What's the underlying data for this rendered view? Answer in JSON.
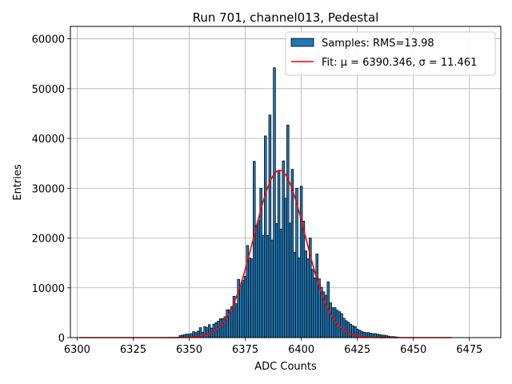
{
  "chart_data": {
    "type": "histogram",
    "title": "Run 701, channel013, Pedestal",
    "xlabel": "ADC Counts",
    "ylabel": "Entries",
    "xlim": [
      6297,
      6489
    ],
    "ylim": [
      0,
      62500
    ],
    "xticks": [
      6300,
      6325,
      6350,
      6375,
      6400,
      6425,
      6450,
      6475
    ],
    "yticks": [
      0,
      10000,
      20000,
      30000,
      40000,
      50000,
      60000
    ],
    "grid": true,
    "legend_position": "upper right",
    "colors": {
      "bar_fill": "#1f77b4",
      "bar_edge": "#000000",
      "fit_line": "#ff0000",
      "grid": "#b0b0b0"
    },
    "histogram": {
      "name": "Samples: RMS=13.98",
      "bin_centers": [
        6346,
        6347,
        6348,
        6349,
        6350,
        6351,
        6352,
        6353,
        6354,
        6355,
        6356,
        6357,
        6358,
        6359,
        6360,
        6361,
        6362,
        6363,
        6364,
        6365,
        6366,
        6367,
        6368,
        6369,
        6370,
        6371,
        6372,
        6373,
        6374,
        6375,
        6376,
        6377,
        6378,
        6379,
        6380,
        6381,
        6382,
        6383,
        6384,
        6385,
        6386,
        6387,
        6388,
        6389,
        6390,
        6391,
        6392,
        6393,
        6394,
        6395,
        6396,
        6397,
        6398,
        6399,
        6400,
        6401,
        6402,
        6403,
        6404,
        6405,
        6406,
        6407,
        6408,
        6409,
        6410,
        6411,
        6412,
        6413,
        6414,
        6415,
        6416,
        6417,
        6418,
        6419,
        6420,
        6421,
        6422,
        6423,
        6424,
        6425,
        6426,
        6427,
        6428,
        6429,
        6430,
        6431,
        6432,
        6433,
        6434,
        6435,
        6436,
        6437,
        6438,
        6439,
        6440,
        6441,
        6442,
        6443
      ],
      "counts": [
        400,
        500,
        600,
        700,
        700,
        800,
        1200,
        1000,
        1300,
        2000,
        1100,
        2200,
        2000,
        2600,
        1900,
        2700,
        3000,
        3300,
        3800,
        3800,
        4200,
        5600,
        5600,
        6200,
        8300,
        6800,
        11700,
        10400,
        11500,
        12300,
        18500,
        16000,
        15800,
        35400,
        22500,
        23500,
        30000,
        20500,
        40500,
        20500,
        44700,
        19600,
        54200,
        22900,
        33600,
        21800,
        35500,
        28000,
        42700,
        23000,
        33800,
        17100,
        30000,
        16000,
        30400,
        23400,
        17400,
        15800,
        20000,
        13700,
        12000,
        16800,
        11800,
        10100,
        9200,
        8500,
        11200,
        7000,
        6000,
        6000,
        5500,
        5200,
        4800,
        3900,
        3400,
        3100,
        2700,
        2400,
        2200,
        1700,
        1500,
        1200,
        1100,
        1000,
        1000,
        900,
        800,
        800,
        700,
        600,
        500,
        500,
        400,
        300,
        200,
        200,
        150,
        100
      ]
    },
    "fit": {
      "name": "Fit: μ = 6390.346, σ = 11.461",
      "mu": 6390.346,
      "sigma": 11.461,
      "amplitude": 33600,
      "x_range": [
        6301,
        6467
      ]
    }
  }
}
